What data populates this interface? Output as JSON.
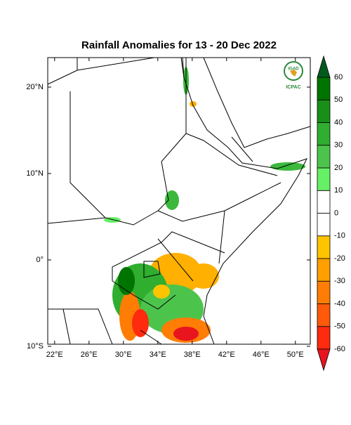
{
  "title": "Rainfall Anomalies for 13 - 20 Dec 2022",
  "map": {
    "lat_ticks": [
      {
        "value": 20,
        "label": "20°N"
      },
      {
        "value": 10,
        "label": "10°N"
      },
      {
        "value": 0,
        "label": "0°"
      },
      {
        "value": -10,
        "label": "10°S"
      }
    ],
    "lon_ticks": [
      {
        "value": 22,
        "label": "22°E"
      },
      {
        "value": 26,
        "label": "26°E"
      },
      {
        "value": 30,
        "label": "30°E"
      },
      {
        "value": 34,
        "label": "34°E"
      },
      {
        "value": 38,
        "label": "38°E"
      },
      {
        "value": 42,
        "label": "42°E"
      },
      {
        "value": 46,
        "label": "46°E"
      },
      {
        "value": 50,
        "label": "50°E"
      }
    ]
  },
  "colorbar": {
    "levels": [
      -60,
      -50,
      -40,
      -30,
      -20,
      -10,
      0,
      10,
      20,
      30,
      40,
      50,
      60
    ],
    "colors": [
      "#e8141e",
      "#ff2b0f",
      "#ff5a0a",
      "#ff7d05",
      "#ffa000",
      "#ffc400",
      "#ffffff",
      "#ffffff",
      "#66f066",
      "#4cc44c",
      "#2fae2f",
      "#189018",
      "#007400",
      "#005a1e"
    ]
  },
  "logo": {
    "name": "IGAD",
    "org": "ICPAC"
  }
}
